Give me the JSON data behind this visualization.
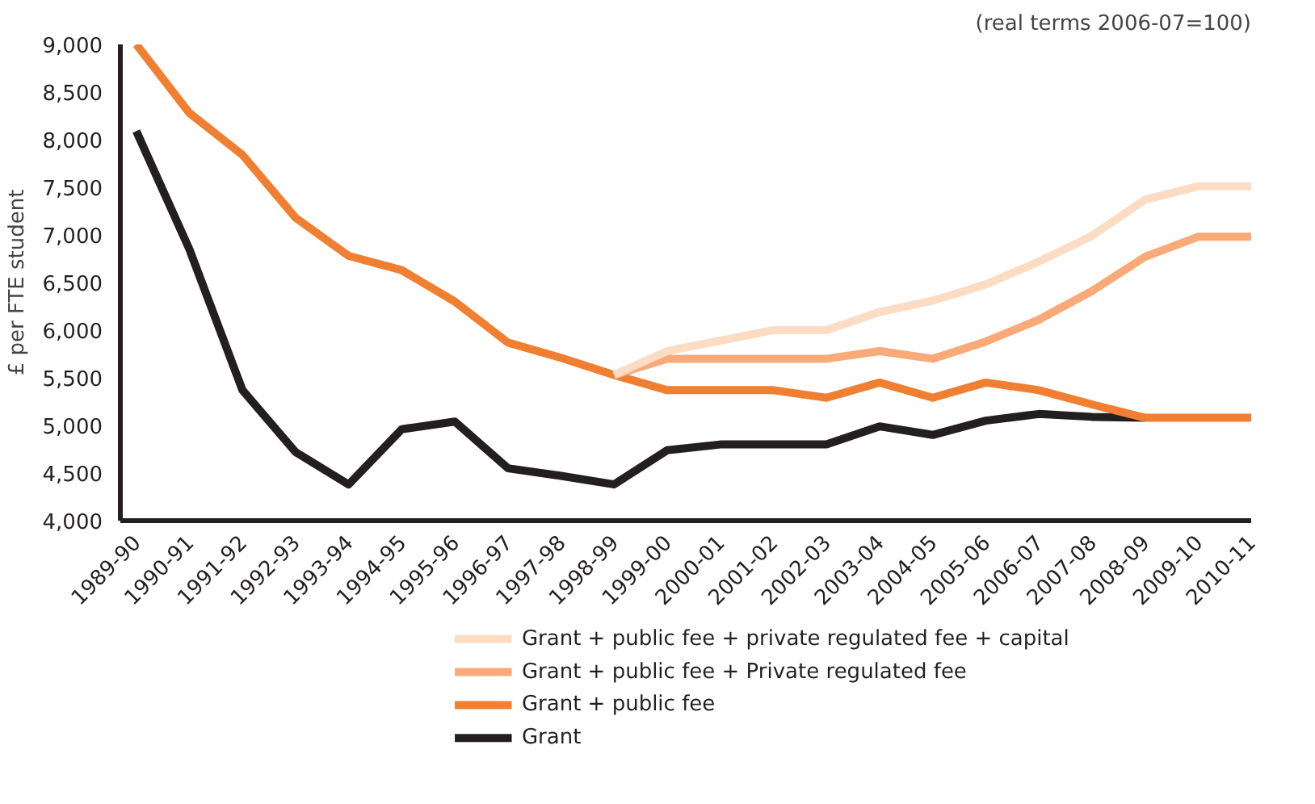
{
  "chart_data": {
    "type": "line",
    "ylabel": "£ per FTE student",
    "annotations": [
      "(real terms 2006-07=100)"
    ],
    "categories": [
      "1989-90",
      "1990-91",
      "1991-92",
      "1992-93",
      "1993-94",
      "1994-95",
      "1995-96",
      "1996-97",
      "1997-98",
      "1998-99",
      "1999-00",
      "2000-01",
      "2001-02",
      "2002-03",
      "2003-04",
      "2004-05",
      "2005-06",
      "2006-07",
      "2007-08",
      "2008-09",
      "2009-10",
      "2010-11"
    ],
    "series": [
      {
        "name": "Grant + public fee + private regulated fee + capital",
        "color": "#fddcc4",
        "values": [
          null,
          null,
          null,
          null,
          null,
          null,
          null,
          null,
          null,
          5530,
          5780,
          5890,
          6000,
          6000,
          6190,
          6310,
          6480,
          6720,
          6990,
          7370,
          7510,
          7510
        ]
      },
      {
        "name": "Grant + public fee + Private regulated fee",
        "color": "#f9aa78",
        "values": [
          null,
          null,
          null,
          null,
          null,
          null,
          null,
          null,
          null,
          5530,
          5700,
          5700,
          5700,
          5700,
          5780,
          5700,
          5880,
          6110,
          6410,
          6770,
          6980,
          6980
        ]
      },
      {
        "name": "Grant + public fee",
        "color": "#f07f32",
        "values": [
          9000,
          8280,
          7840,
          7180,
          6780,
          6630,
          6300,
          5870,
          5710,
          5530,
          5370,
          5370,
          5370,
          5290,
          5450,
          5290,
          5450,
          5370,
          5220,
          5080,
          5080,
          5080
        ]
      },
      {
        "name": "Grant",
        "color": "#231f20",
        "values": [
          8090,
          6850,
          5370,
          4720,
          4380,
          4960,
          5040,
          4550,
          4470,
          4380,
          4740,
          4800,
          4800,
          4800,
          4990,
          4900,
          5050,
          5120,
          5090,
          5080,
          null,
          null
        ]
      }
    ],
    "ylim": [
      4000,
      9000
    ],
    "yticks": [
      {
        "value": 4000,
        "label": "4,000"
      },
      {
        "value": 4500,
        "label": "4,500"
      },
      {
        "value": 5000,
        "label": "5,000"
      },
      {
        "value": 5500,
        "label": "5,500"
      },
      {
        "value": 6000,
        "label": "6,000"
      },
      {
        "value": 6500,
        "label": "6,500"
      },
      {
        "value": 7000,
        "label": "7,000"
      },
      {
        "value": 7500,
        "label": "7,500"
      },
      {
        "value": 8000,
        "label": "8,000"
      },
      {
        "value": 8500,
        "label": "8,500"
      },
      {
        "value": 9000,
        "label": "9,000"
      }
    ],
    "grid": false,
    "legend": "bottom",
    "line_style": "solid"
  }
}
